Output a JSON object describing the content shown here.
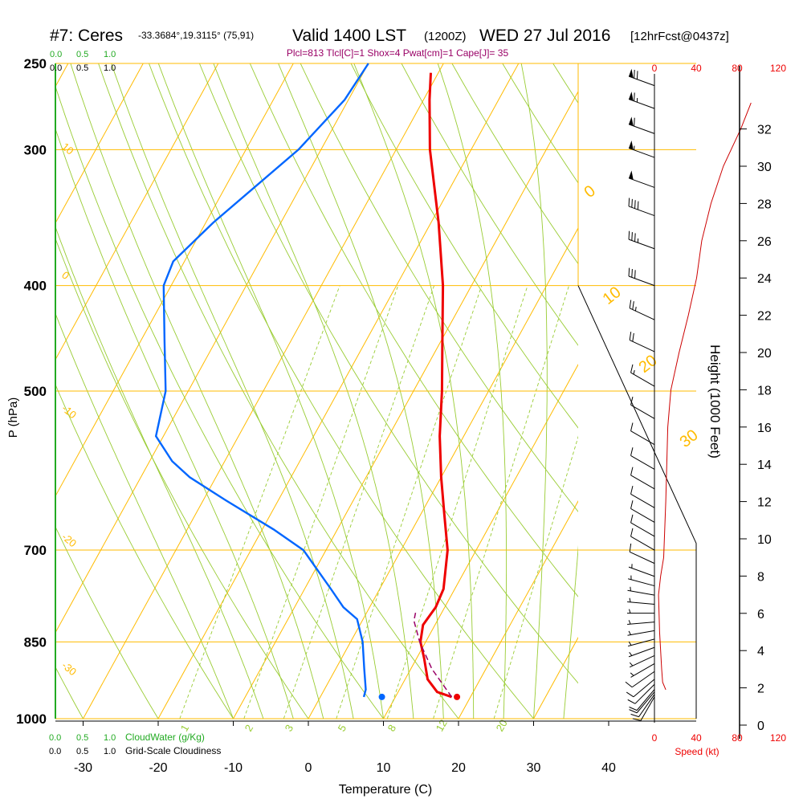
{
  "header": {
    "station": "#7: Ceres",
    "coords": "-33.3684°,19.3115° (75,91)",
    "valid": "Valid 1400 LST",
    "zulu": "(1200Z)",
    "date": "WED 27 Jul 2016",
    "forecast": "[12hrFcst@0437z]",
    "indices": "Plcl=813 Tlcl[C]=1 Shox=4 Pwat[cm]=1 Cape[J]= 35"
  },
  "colors": {
    "isotherm": "#ffbb00",
    "adiabat": "#99cc33",
    "moist_adiabat": "#99cc33",
    "temperature": "#ee0000",
    "dewpoint": "#0066ff",
    "wind_speed": "#cc0000",
    "cloud_water": "#22aa22",
    "parcel": "#990066"
  },
  "labels": {
    "top_cw_scale": [
      "0.0",
      "0.5",
      "1.0"
    ],
    "top_cloud_scale": [
      "0.0",
      "0.5",
      "1.0"
    ],
    "bottom_cw_scale": [
      "0.0",
      "0.5",
      "1.0"
    ],
    "bottom_cw_text": "CloudWater (g/Kg)",
    "bottom_cloud_scale": [
      "0.0",
      "0.5",
      "1.0"
    ],
    "bottom_cloud_text": "Grid-Scale Cloudiness",
    "speed_top_ticks": [
      "0",
      "40",
      "80",
      "120"
    ],
    "speed_bottom_ticks": [
      "0",
      "40",
      "80",
      "120"
    ],
    "speed_label": "Speed (kt)",
    "isotherm_labels": [
      "0",
      "10",
      "20",
      "30"
    ],
    "dry_adiabat_labels": [
      "10",
      "0",
      "-10",
      "-20",
      "-30"
    ],
    "mixing_ratio_labels": [
      "1",
      "2",
      "3",
      "5",
      "8",
      "12",
      "20"
    ]
  },
  "chart_data": {
    "type": "skew-t",
    "xlabel": "Temperature (C)",
    "ylabel": "P (hPa)",
    "y2label": "Height (1000 Feet)",
    "x_ticks": [
      -30,
      -20,
      -10,
      0,
      10,
      20,
      30,
      40
    ],
    "pressure_ticks": [
      250,
      300,
      400,
      500,
      700,
      850,
      1000
    ],
    "height_ticks": [
      0,
      2,
      4,
      6,
      8,
      10,
      12,
      14,
      16,
      18,
      20,
      22,
      24,
      26,
      28,
      30,
      32
    ],
    "temperature_profile": [
      {
        "p": 955,
        "t": 17.5
      },
      {
        "p": 945,
        "t": 15.2
      },
      {
        "p": 920,
        "t": 13.0
      },
      {
        "p": 880,
        "t": 11.0
      },
      {
        "p": 850,
        "t": 9.3
      },
      {
        "p": 820,
        "t": 8.4
      },
      {
        "p": 790,
        "t": 8.8
      },
      {
        "p": 760,
        "t": 8.5
      },
      {
        "p": 700,
        "t": 6.2
      },
      {
        "p": 650,
        "t": 3.2
      },
      {
        "p": 600,
        "t": 0.0
      },
      {
        "p": 550,
        "t": -3.2
      },
      {
        "p": 500,
        "t": -6.2
      },
      {
        "p": 450,
        "t": -9.8
      },
      {
        "p": 400,
        "t": -13.8
      },
      {
        "p": 350,
        "t": -19.0
      },
      {
        "p": 300,
        "t": -25.5
      },
      {
        "p": 270,
        "t": -29.2
      },
      {
        "p": 255,
        "t": -31.0
      }
    ],
    "dewpoint_profile": [
      {
        "p": 955,
        "t": 5.8
      },
      {
        "p": 940,
        "t": 5.5
      },
      {
        "p": 900,
        "t": 3.8
      },
      {
        "p": 850,
        "t": 1.6
      },
      {
        "p": 810,
        "t": -0.8
      },
      {
        "p": 790,
        "t": -3.5
      },
      {
        "p": 760,
        "t": -6.5
      },
      {
        "p": 700,
        "t": -13.0
      },
      {
        "p": 670,
        "t": -18.5
      },
      {
        "p": 630,
        "t": -27.0
      },
      {
        "p": 600,
        "t": -33.5
      },
      {
        "p": 580,
        "t": -37.0
      },
      {
        "p": 550,
        "t": -41.0
      },
      {
        "p": 500,
        "t": -43.0
      },
      {
        "p": 450,
        "t": -46.8
      },
      {
        "p": 400,
        "t": -51.0
      },
      {
        "p": 380,
        "t": -51.5
      },
      {
        "p": 350,
        "t": -49.0
      },
      {
        "p": 300,
        "t": -43.0
      },
      {
        "p": 270,
        "t": -40.5
      },
      {
        "p": 250,
        "t": -40.0
      }
    ],
    "parcel_profile": [
      {
        "p": 955,
        "t": 17.5
      },
      {
        "p": 900,
        "t": 12.8
      },
      {
        "p": 850,
        "t": 9.2
      },
      {
        "p": 813,
        "t": 6.9
      },
      {
        "p": 795,
        "t": 6.4
      }
    ],
    "surface_temperature": {
      "p": 955,
      "t": 18.2
    },
    "surface_dewpoint": {
      "p": 955,
      "t": 8.2
    },
    "wind_speed_profile": [
      {
        "h": 1.9,
        "s": 11
      },
      {
        "h": 2.3,
        "s": 8
      },
      {
        "h": 3.0,
        "s": 7
      },
      {
        "h": 5.0,
        "s": 5
      },
      {
        "h": 7.0,
        "s": 4
      },
      {
        "h": 8.0,
        "s": 6
      },
      {
        "h": 9.0,
        "s": 9
      },
      {
        "h": 12.0,
        "s": 11
      },
      {
        "h": 16.0,
        "s": 13
      },
      {
        "h": 18.0,
        "s": 16
      },
      {
        "h": 20.0,
        "s": 24
      },
      {
        "h": 22.0,
        "s": 33
      },
      {
        "h": 24.0,
        "s": 41
      },
      {
        "h": 26.0,
        "s": 46
      },
      {
        "h": 28.0,
        "s": 55
      },
      {
        "h": 30.0,
        "s": 67
      },
      {
        "h": 32.0,
        "s": 84
      },
      {
        "h": 33.4,
        "s": 94
      }
    ],
    "wind_barbs": [
      {
        "p": 955,
        "dir": 210,
        "spd": 10
      },
      {
        "p": 950,
        "dir": 215,
        "spd": 10
      },
      {
        "p": 945,
        "dir": 220,
        "spd": 10
      },
      {
        "p": 940,
        "dir": 220,
        "spd": 10
      },
      {
        "p": 930,
        "dir": 225,
        "spd": 10
      },
      {
        "p": 920,
        "dir": 230,
        "spd": 10
      },
      {
        "p": 905,
        "dir": 235,
        "spd": 10
      },
      {
        "p": 890,
        "dir": 240,
        "spd": 5
      },
      {
        "p": 875,
        "dir": 245,
        "spd": 5
      },
      {
        "p": 860,
        "dir": 250,
        "spd": 5
      },
      {
        "p": 845,
        "dir": 255,
        "spd": 5
      },
      {
        "p": 830,
        "dir": 260,
        "spd": 5
      },
      {
        "p": 815,
        "dir": 265,
        "spd": 5
      },
      {
        "p": 800,
        "dir": 270,
        "spd": 5
      },
      {
        "p": 785,
        "dir": 275,
        "spd": 5
      },
      {
        "p": 770,
        "dir": 280,
        "spd": 5
      },
      {
        "p": 755,
        "dir": 285,
        "spd": 5
      },
      {
        "p": 740,
        "dir": 290,
        "spd": 5
      },
      {
        "p": 720,
        "dir": 295,
        "spd": 10
      },
      {
        "p": 700,
        "dir": 300,
        "spd": 10
      },
      {
        "p": 680,
        "dir": 300,
        "spd": 10
      },
      {
        "p": 660,
        "dir": 300,
        "spd": 10
      },
      {
        "p": 640,
        "dir": 300,
        "spd": 10
      },
      {
        "p": 615,
        "dir": 300,
        "spd": 10
      },
      {
        "p": 590,
        "dir": 300,
        "spd": 10
      },
      {
        "p": 560,
        "dir": 300,
        "spd": 10
      },
      {
        "p": 530,
        "dir": 300,
        "spd": 10
      },
      {
        "p": 495,
        "dir": 300,
        "spd": 15
      },
      {
        "p": 460,
        "dir": 295,
        "spd": 20
      },
      {
        "p": 430,
        "dir": 295,
        "spd": 25
      },
      {
        "p": 400,
        "dir": 290,
        "spd": 30
      },
      {
        "p": 370,
        "dir": 290,
        "spd": 35
      },
      {
        "p": 345,
        "dir": 290,
        "spd": 40
      },
      {
        "p": 325,
        "dir": 290,
        "spd": 50
      },
      {
        "p": 305,
        "dir": 290,
        "spd": 55
      },
      {
        "p": 290,
        "dir": 290,
        "spd": 60
      },
      {
        "p": 275,
        "dir": 290,
        "spd": 65
      },
      {
        "p": 262,
        "dir": 290,
        "spd": 70
      }
    ],
    "ylim": [
      1000,
      250
    ],
    "xlim": [
      -33,
      36
    ],
    "grid": true,
    "legend": "none"
  }
}
